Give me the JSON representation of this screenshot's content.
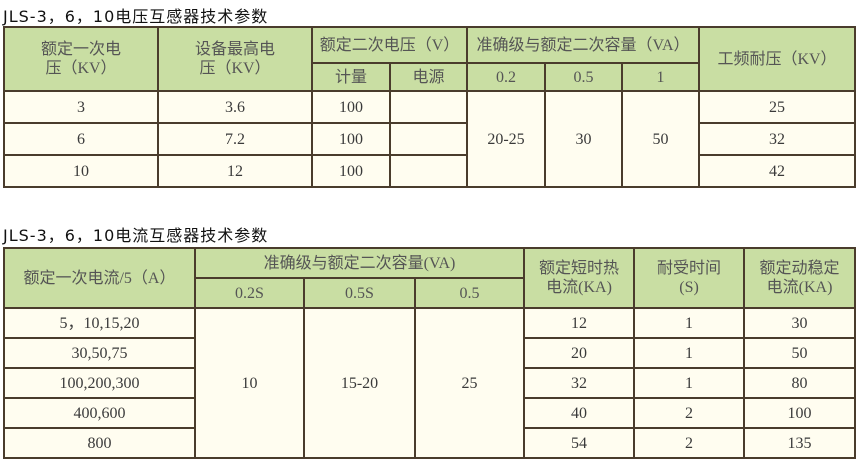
{
  "voltage_table": {
    "title": "JLS-3，6，10电压互感器技术参数",
    "headers": {
      "rated_primary": "额定一次电压（KV）",
      "max_voltage": "设备最高电压（KV）",
      "rated_secondary": "额定二次电压（V）",
      "metering": "计量",
      "power": "电源",
      "accuracy": "准确级与额定二次容量（VA）",
      "acc_02": "0.2",
      "acc_05": "0.5",
      "acc_1": "1",
      "withstand": "工频耐压（KV）"
    },
    "rows": [
      {
        "primary": "3",
        "max": "3.6",
        "metering": "100",
        "power": "",
        "withstand": "25"
      },
      {
        "primary": "6",
        "max": "7.2",
        "metering": "100",
        "power": "",
        "withstand": "32"
      },
      {
        "primary": "10",
        "max": "12",
        "metering": "100",
        "power": "",
        "withstand": "42"
      }
    ],
    "merged": {
      "acc_02": "20-25",
      "acc_05": "30",
      "acc_1": "50"
    }
  },
  "current_table": {
    "title": "JLS-3，6，10电流互感器技术参数",
    "headers": {
      "rated_primary": "额定一次电流/5（A）",
      "accuracy": "准确级与额定二次容量(VA)",
      "acc_02s": "0.2S",
      "acc_05s": "0.5S",
      "acc_05": "0.5",
      "thermal": "额定短时热电流(KA)",
      "time": "耐受时间(S)",
      "dynamic": "额定动稳定电流(KA)"
    },
    "rows": [
      {
        "primary": "5，10,15,20",
        "thermal": "12",
        "time": "1",
        "dynamic": "30"
      },
      {
        "primary": "30,50,75",
        "thermal": "20",
        "time": "1",
        "dynamic": "50"
      },
      {
        "primary": "100,200,300",
        "thermal": "32",
        "time": "1",
        "dynamic": "80"
      },
      {
        "primary": "400,600",
        "thermal": "40",
        "time": "2",
        "dynamic": "100"
      },
      {
        "primary": "800",
        "thermal": "54",
        "time": "2",
        "dynamic": "135"
      }
    ],
    "merged": {
      "acc_02s": "10",
      "acc_05s": "15-20",
      "acc_05": "25"
    }
  }
}
